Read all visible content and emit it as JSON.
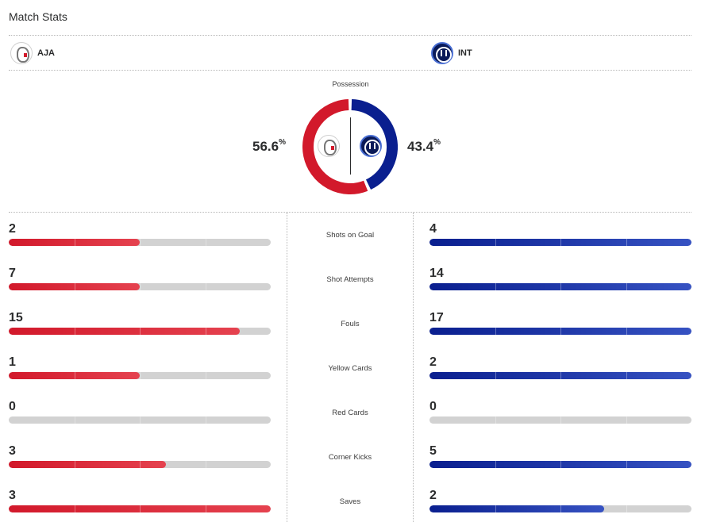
{
  "header": {
    "title": "Match Stats"
  },
  "teams": {
    "home": {
      "abbr": "AJA",
      "color": "#d2192b",
      "logo_icon": "ajax-crest-icon"
    },
    "away": {
      "abbr": "INT",
      "color": "#0a1f8f",
      "logo_icon": "inter-crest-icon"
    }
  },
  "possession": {
    "label": "Possession",
    "home_pct": "56.6",
    "away_pct": "43.4",
    "pct_symbol": "%",
    "home_value": 56.6,
    "away_value": 43.4,
    "home_color": "#d2192b",
    "away_color": "#0a1f8f",
    "track_color": "#d2d2d2"
  },
  "stats": [
    {
      "label": "Shots on Goal",
      "home": "2",
      "away": "4",
      "home_share": 0.5,
      "away_share": 1.0
    },
    {
      "label": "Shot Attempts",
      "home": "7",
      "away": "14",
      "home_share": 0.5,
      "away_share": 1.0
    },
    {
      "label": "Fouls",
      "home": "15",
      "away": "17",
      "home_share": 0.882,
      "away_share": 1.0
    },
    {
      "label": "Yellow Cards",
      "home": "1",
      "away": "2",
      "home_share": 0.5,
      "away_share": 1.0
    },
    {
      "label": "Red Cards",
      "home": "0",
      "away": "0",
      "home_share": 0,
      "away_share": 0
    },
    {
      "label": "Corner Kicks",
      "home": "3",
      "away": "5",
      "home_share": 0.6,
      "away_share": 1.0
    },
    {
      "label": "Saves",
      "home": "3",
      "away": "2",
      "home_share": 1.0,
      "away_share": 0.667
    }
  ]
}
